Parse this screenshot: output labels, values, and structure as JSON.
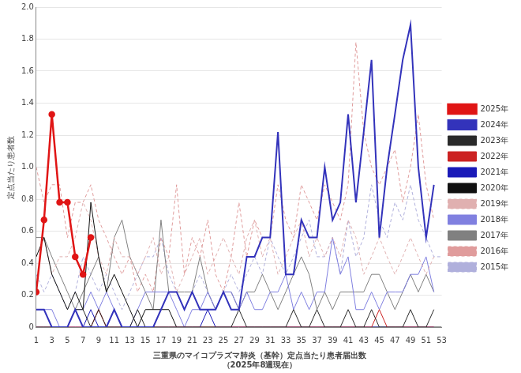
{
  "chart_data": {
    "type": "line",
    "title": "三重県のマイコプラズマ肺炎（基幹）定点当たり患者届出数",
    "subtitle": "（2025年8週現在）",
    "y_label": "定点当たり患者数",
    "x": [
      1,
      2,
      3,
      4,
      5,
      6,
      7,
      8,
      9,
      10,
      11,
      12,
      13,
      14,
      15,
      16,
      17,
      18,
      19,
      20,
      21,
      22,
      23,
      24,
      25,
      26,
      27,
      28,
      29,
      30,
      31,
      32,
      33,
      34,
      35,
      36,
      37,
      38,
      39,
      40,
      41,
      42,
      43,
      44,
      45,
      46,
      47,
      48,
      49,
      50,
      51,
      52,
      53
    ],
    "xlim": [
      1,
      53
    ],
    "xticks": [
      1,
      3,
      5,
      7,
      9,
      11,
      13,
      15,
      17,
      19,
      21,
      23,
      25,
      27,
      29,
      31,
      33,
      35,
      37,
      39,
      41,
      43,
      45,
      47,
      49,
      51,
      53
    ],
    "ylim": [
      0,
      2
    ],
    "yticks": [
      0,
      0.2,
      0.4,
      0.6,
      0.8,
      {
        "value": 1,
        "label": "1.0"
      },
      1.2,
      1.4,
      1.6,
      1.8,
      {
        "value": 2,
        "label": "2.0"
      }
    ],
    "grid": true,
    "legend": "right",
    "series": [
      {
        "name": "2015年",
        "color": "#b0b0dc",
        "line_style": "dashed",
        "values": [
          0.33,
          0.22,
          0.33,
          0.22,
          0.11,
          0.22,
          0.44,
          0.33,
          0.22,
          0.33,
          0.22,
          0.11,
          0.22,
          0.33,
          0.44,
          0.44,
          0.56,
          0.33,
          0.22,
          0.11,
          0.22,
          0.33,
          0.22,
          0.11,
          0.22,
          0.33,
          0.22,
          0.33,
          0.44,
          0.33,
          0.56,
          0.44,
          0.33,
          0.44,
          0.56,
          0.67,
          0.44,
          0.44,
          0.56,
          0.33,
          0.67,
          0.44,
          0.56,
          0.89,
          0.67,
          0.56,
          0.78,
          0.67,
          0.89,
          0.67,
          0.56,
          0.44,
          0.44
        ]
      },
      {
        "name": "2016年",
        "color": "#e09c9c",
        "line_style": "dashed",
        "values": [
          1.0,
          0.78,
          0.89,
          0.89,
          0.56,
          0.78,
          0.78,
          0.89,
          0.67,
          0.56,
          0.44,
          0.33,
          0.44,
          0.22,
          0.33,
          0.22,
          0.56,
          0.44,
          0.89,
          0.33,
          0.56,
          0.44,
          0.67,
          0.33,
          0.22,
          0.44,
          0.78,
          0.44,
          0.67,
          0.56,
          0.56,
          0.89,
          0.67,
          0.56,
          0.89,
          0.78,
          0.67,
          0.89,
          0.78,
          0.67,
          0.89,
          1.78,
          1.22,
          1.0,
          0.89,
          1.0,
          1.11,
          0.78,
          1.0,
          1.33,
          0.89,
          0.67,
          null
        ]
      },
      {
        "name": "2017年",
        "color": "#808080",
        "line_style": "solid",
        "values": [
          0.56,
          0.56,
          0.44,
          0.33,
          0.22,
          0.11,
          0.22,
          0.33,
          0.44,
          0.22,
          0.56,
          0.67,
          0.44,
          0.33,
          0.22,
          0.11,
          0.67,
          0.22,
          0.22,
          0.22,
          0.22,
          0.44,
          0.22,
          0.11,
          0.22,
          0.22,
          0.11,
          0.22,
          0.22,
          0.33,
          0.22,
          0.11,
          0.22,
          0.33,
          0.44,
          0.33,
          0.11,
          0.22,
          0.11,
          0.22,
          0.22,
          0.22,
          0.22,
          0.33,
          0.33,
          0.22,
          0.11,
          0.22,
          0.33,
          0.22,
          0.33,
          0.22,
          null
        ]
      },
      {
        "name": "2018年",
        "color": "#8080e0",
        "line_style": "solid",
        "values": [
          0.11,
          0.11,
          0.11,
          0,
          0,
          0.11,
          0.11,
          0.22,
          0.11,
          0.22,
          0.11,
          0,
          0,
          0.11,
          0.22,
          0.22,
          0.22,
          0.22,
          0.11,
          0,
          0.11,
          0.11,
          0.22,
          0.11,
          0.22,
          0.22,
          0.11,
          0.22,
          0.11,
          0.11,
          0.22,
          0.22,
          0.33,
          0.11,
          0.22,
          0.11,
          0.22,
          0.22,
          0.56,
          0.33,
          0.44,
          0.11,
          0.11,
          0.22,
          0.11,
          0.22,
          0.22,
          0.22,
          0.33,
          0.33,
          0.44,
          0.22,
          null
        ]
      },
      {
        "name": "2019年",
        "color": "#e0b0b0",
        "line_style": "dashed",
        "values": [
          0.44,
          0.56,
          0.33,
          0.44,
          0.44,
          0.56,
          0.78,
          0.67,
          0.44,
          0.33,
          0.56,
          0.44,
          0.44,
          0.33,
          0.44,
          0.56,
          0.33,
          0.44,
          0.22,
          0.33,
          0.44,
          0.56,
          0.33,
          0.44,
          0.56,
          0.44,
          0.33,
          0.56,
          0.67,
          0.44,
          0.56,
          0.33,
          0.44,
          0.56,
          0.67,
          0.44,
          0.56,
          0.44,
          0.56,
          0.44,
          0.67,
          0.56,
          0.33,
          0.44,
          0.56,
          0.44,
          0.33,
          0.44,
          0.56,
          0.44,
          0.33,
          0.44,
          null
        ]
      },
      {
        "name": "2020年",
        "color": "#111111",
        "line_style": "solid",
        "values": [
          0.44,
          0.56,
          0.33,
          0.22,
          0.11,
          0.22,
          0.11,
          0.78,
          0.44,
          0.22,
          0.33,
          0.22,
          0.11,
          0,
          0.11,
          0.11,
          0.11,
          0.11,
          0,
          0,
          0,
          0,
          0,
          0,
          0,
          0,
          0,
          0,
          0,
          0,
          0,
          0,
          0,
          0,
          0,
          0,
          0,
          0,
          0,
          0,
          0,
          0,
          0,
          0,
          0,
          0,
          0,
          0,
          0,
          0,
          0,
          0,
          0
        ]
      },
      {
        "name": "2021年",
        "color": "#1a1ab8",
        "line_style": "solid",
        "values": [
          0,
          0,
          0,
          0,
          0,
          0,
          0,
          0.11,
          0,
          0,
          0,
          0,
          0,
          0,
          0,
          0,
          0,
          0,
          0,
          0,
          0,
          0,
          0.11,
          0,
          0,
          0,
          0,
          0,
          0,
          0,
          0,
          0,
          0,
          0,
          0,
          0,
          0,
          0,
          0,
          0,
          0,
          0,
          0,
          0,
          0,
          0,
          0,
          0,
          0,
          0,
          0,
          0,
          null
        ]
      },
      {
        "name": "2022年",
        "color": "#cc2222",
        "line_style": "solid",
        "values": [
          0,
          0,
          0,
          0,
          0,
          0,
          0,
          0,
          0.11,
          0,
          0,
          0,
          0,
          0,
          0,
          0,
          0,
          0,
          0,
          0,
          0,
          0,
          0,
          0,
          0,
          0,
          0,
          0,
          0,
          0,
          0,
          0,
          0,
          0,
          0,
          0,
          0,
          0,
          0,
          0,
          0,
          0,
          0,
          0,
          0.11,
          0,
          0,
          0,
          0,
          0,
          0,
          0,
          null
        ]
      },
      {
        "name": "2023年",
        "color": "#2a2a2a",
        "line_style": "solid",
        "values": [
          0,
          0,
          0,
          0,
          0,
          0.11,
          0.11,
          0,
          0.11,
          0,
          0,
          0,
          0,
          0.11,
          0,
          0,
          0,
          0,
          0,
          0,
          0,
          0,
          0,
          0,
          0,
          0,
          0.11,
          0,
          0,
          0,
          0,
          0,
          0,
          0.11,
          0,
          0,
          0.11,
          0,
          0,
          0,
          0.11,
          0,
          0,
          0.11,
          0,
          0,
          0,
          0,
          0.11,
          0,
          0,
          0.11,
          null
        ]
      },
      {
        "name": "2024年",
        "color": "#3333bb",
        "line_style": "solid",
        "values": [
          0.11,
          0.11,
          0,
          0,
          0,
          0.11,
          0,
          0,
          0,
          0,
          0.11,
          0,
          0,
          0,
          0,
          0,
          0.11,
          0.22,
          0.22,
          0.11,
          0.22,
          0.11,
          0.11,
          0.11,
          0.22,
          0.11,
          0.11,
          0.44,
          0.44,
          0.56,
          0.56,
          1.22,
          0.33,
          0.33,
          0.67,
          0.56,
          0.56,
          1.0,
          0.67,
          0.78,
          1.33,
          0.78,
          1.22,
          1.67,
          0.56,
          1.0,
          1.33,
          1.67,
          1.89,
          1.0,
          0.56,
          0.89,
          null
        ]
      },
      {
        "name": "2025年",
        "color": "#e01515",
        "line_style": "solid",
        "marker": "circle",
        "values": [
          0.22,
          0.67,
          1.33,
          0.78,
          0.78,
          0.44,
          0.33,
          0.56,
          null,
          null,
          null,
          null,
          null,
          null,
          null,
          null,
          null,
          null,
          null,
          null,
          null,
          null,
          null,
          null,
          null,
          null,
          null,
          null,
          null,
          null,
          null,
          null,
          null,
          null,
          null,
          null,
          null,
          null,
          null,
          null,
          null,
          null,
          null,
          null,
          null,
          null,
          null,
          null,
          null,
          null,
          null,
          null,
          null
        ]
      }
    ]
  }
}
